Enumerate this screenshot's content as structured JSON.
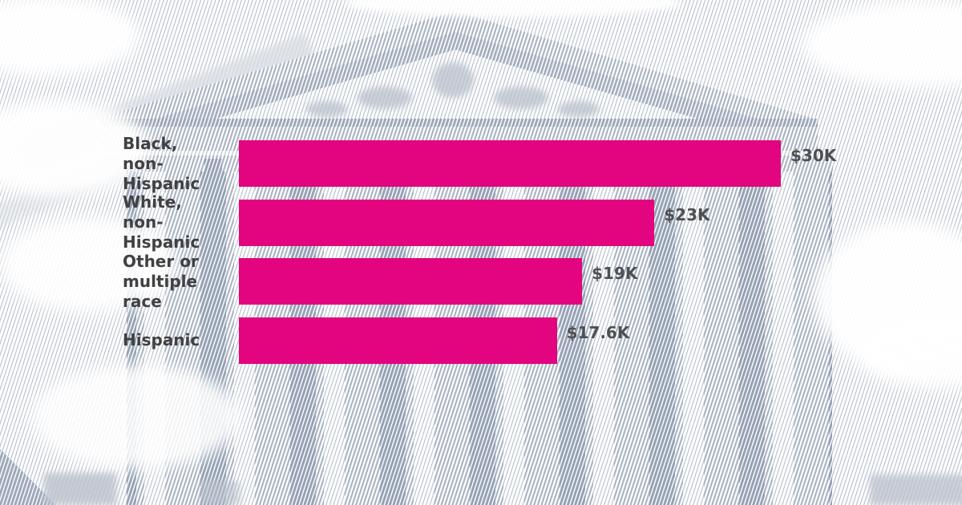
{
  "chart_data": {
    "type": "bar",
    "orientation": "horizontal",
    "categories": [
      "Black,\nnon-Hispanic",
      "White,\nnon-Hispanic",
      "Other or\nmultiple\nrace",
      "Hispanic"
    ],
    "values": [
      30,
      23,
      19,
      17.6
    ],
    "value_labels": [
      "$30K",
      "$23K",
      "$19K",
      "$17.6K"
    ],
    "unit": "USD thousands",
    "xlim": [
      0,
      30
    ],
    "title": "",
    "xlabel": "",
    "ylabel": "",
    "grid": false,
    "legend": false
  },
  "colors": {
    "bar": "#e2057f",
    "category_text": "#414042",
    "value_text": "#4f5052",
    "background": "#ffffff",
    "hatch_light": "#bac2cd",
    "hatch_medium": "#a8b2c1",
    "hatch_dark": "#95a1b4"
  },
  "background_scene": "supreme-court-building-halftone-illustration"
}
